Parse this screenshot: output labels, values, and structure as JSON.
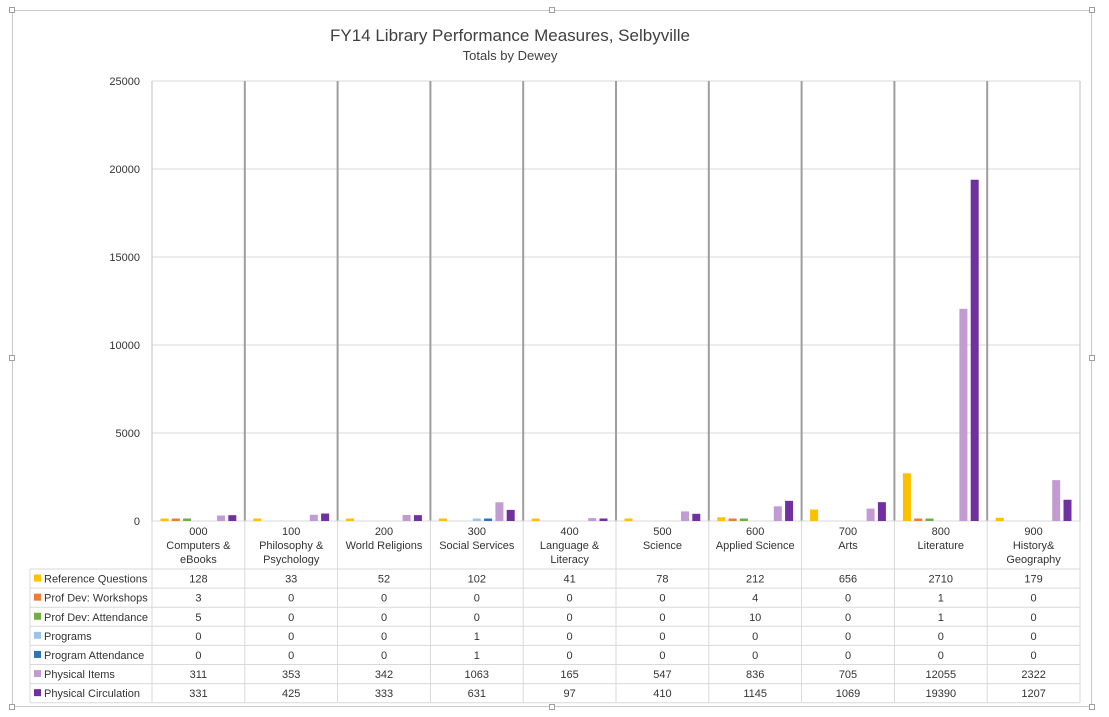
{
  "chart_data": {
    "type": "bar",
    "title": "FY14 Library Performance Measures, Selbyville",
    "subtitle": "Totals by Dewey",
    "ylim": [
      0,
      25000
    ],
    "yticks": [
      "0",
      "5000",
      "10000",
      "15000",
      "20000",
      "25000"
    ],
    "categories": [
      [
        "000",
        "Computers &",
        "eBooks"
      ],
      [
        "100",
        "Philosophy &",
        "Psychology"
      ],
      [
        "200",
        "World Religions"
      ],
      [
        "300",
        "Social Services"
      ],
      [
        "400",
        "Language &",
        "Literacy"
      ],
      [
        "500",
        "Science"
      ],
      [
        "600",
        "Applied Science"
      ],
      [
        "700",
        "Arts"
      ],
      [
        "800",
        "Literature"
      ],
      [
        "900",
        "History&",
        "Geography"
      ]
    ],
    "series": [
      {
        "name": "Reference Questions",
        "color": "#FFC000",
        "values": [
          128,
          33,
          52,
          102,
          41,
          78,
          212,
          656,
          2710,
          179
        ]
      },
      {
        "name": "Prof Dev: Workshops",
        "color": "#ED7D31",
        "values": [
          3,
          0,
          0,
          0,
          0,
          0,
          4,
          0,
          1,
          0
        ]
      },
      {
        "name": "Prof Dev: Attendance",
        "color": "#70AD47",
        "values": [
          5,
          0,
          0,
          0,
          0,
          0,
          10,
          0,
          1,
          0
        ]
      },
      {
        "name": "Programs",
        "color": "#9DC3E6",
        "values": [
          0,
          0,
          0,
          1,
          0,
          0,
          0,
          0,
          0,
          0
        ]
      },
      {
        "name": "Program Attendance",
        "color": "#2E75B6",
        "values": [
          0,
          0,
          0,
          1,
          0,
          0,
          0,
          0,
          0,
          0
        ]
      },
      {
        "name": "Physical Items",
        "color": "#C39BD3",
        "values": [
          311,
          353,
          342,
          1063,
          165,
          547,
          836,
          705,
          12055,
          2322
        ]
      },
      {
        "name": "Physical Circulation",
        "color": "#7030A0",
        "values": [
          331,
          425,
          333,
          631,
          97,
          410,
          1145,
          1069,
          19390,
          1207
        ]
      }
    ],
    "grid": true,
    "legend": "data-table"
  }
}
